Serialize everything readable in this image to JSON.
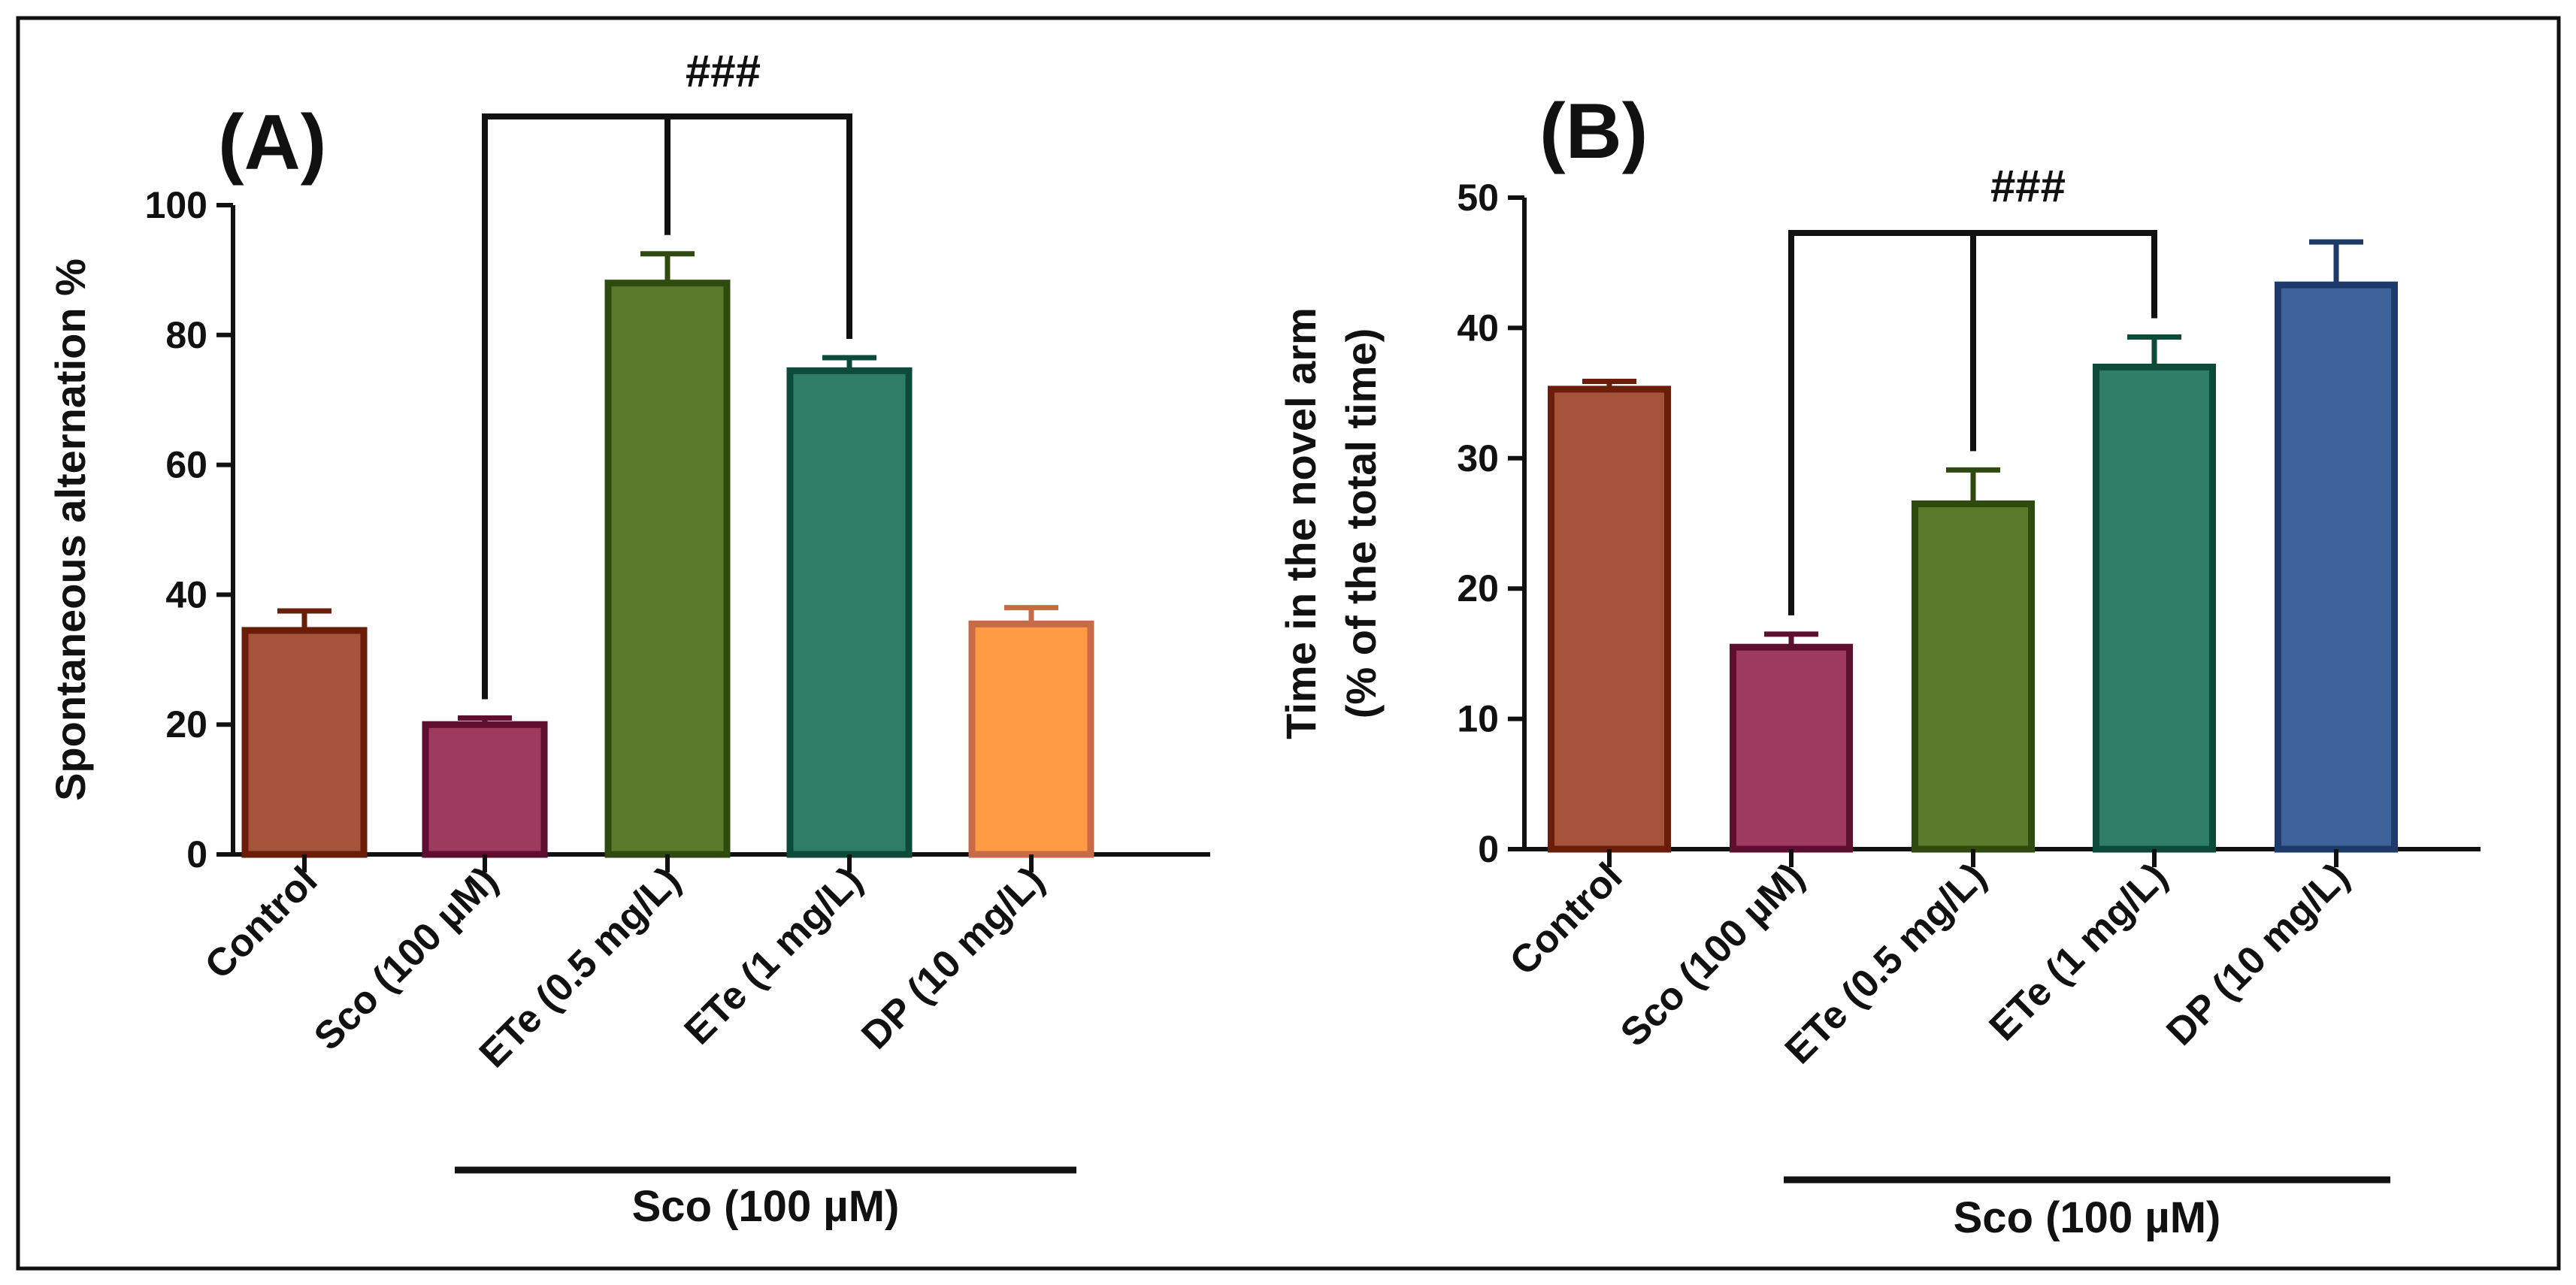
{
  "chart_data": [
    {
      "type": "bar",
      "panel_label": "(A)",
      "ylabel": "Spontaneous alternation %",
      "ylim": [
        0,
        100
      ],
      "yticks": [
        0,
        20,
        40,
        60,
        80,
        100
      ],
      "categories": [
        "Control",
        "Sco (100 µM)",
        "ETe (0.5 mg/L)",
        "ETe (1 mg/L)",
        "DP (10 mg/L)"
      ],
      "values": [
        34.5,
        20,
        88,
        74.5,
        35.5
      ],
      "errors": [
        3,
        1,
        4.5,
        2,
        2.5
      ],
      "colors": [
        "#A5533A",
        "#9E3A5E",
        "#5B7A2B",
        "#2E7D66",
        "#FF9A45"
      ],
      "edge_colors": [
        "#6A1E0A",
        "#5E0E2E",
        "#2E4A0E",
        "#0E4A3A",
        "#C86A45"
      ],
      "group_label": "Sco (100 µM)",
      "significance": {
        "label": "###",
        "bracket": [
          "Sco (100 µM)",
          "ETe (1 mg/L)"
        ],
        "tick_to": "ETe (0.5 mg/L)"
      },
      "grid": false,
      "legend": "none"
    },
    {
      "type": "bar",
      "panel_label": "(B)",
      "ylabel": [
        "Time in the novel arm",
        "(% of the total time)"
      ],
      "ylim": [
        0,
        50
      ],
      "yticks": [
        0,
        10,
        20,
        30,
        40,
        50
      ],
      "categories": [
        "Control",
        "Sco (100 µM)",
        "ETe (0.5 mg/L)",
        "ETe (1 mg/L)",
        "DP (10 mg/L)"
      ],
      "values": [
        35.3,
        15.5,
        26.5,
        37,
        43.3
      ],
      "errors": [
        0.6,
        1,
        2.6,
        2.3,
        3.3
      ],
      "colors": [
        "#A5533A",
        "#9E3A5E",
        "#5B7A2B",
        "#2E7D66",
        "#3D6199"
      ],
      "edge_colors": [
        "#6A1E0A",
        "#5E0E2E",
        "#2E4A0E",
        "#0E4A3A",
        "#1E3A6A"
      ],
      "group_label": "Sco (100 µM)",
      "significance": {
        "label": "###",
        "bracket": [
          "Sco (100 µM)",
          "ETe (1 mg/L)"
        ],
        "tick_to": "ETe (0.5 mg/L)"
      },
      "grid": false,
      "legend": "none"
    }
  ]
}
